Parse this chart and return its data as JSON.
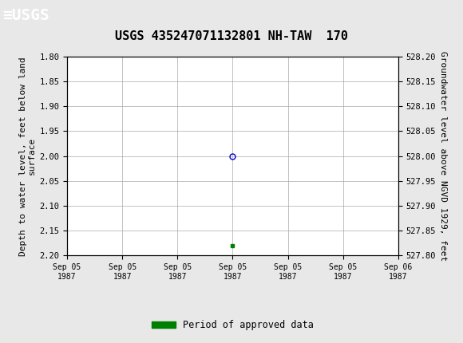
{
  "title": "USGS 435247071132801 NH-TAW  170",
  "title_fontsize": 11,
  "header_color": "#1a6b3c",
  "bg_color": "#e8e8e8",
  "plot_bg_color": "#ffffff",
  "grid_color": "#aaaaaa",
  "xlim_num": [
    0,
    6
  ],
  "x_tick_labels": [
    "Sep 05\n1987",
    "Sep 05\n1987",
    "Sep 05\n1987",
    "Sep 05\n1987",
    "Sep 05\n1987",
    "Sep 05\n1987",
    "Sep 06\n1987"
  ],
  "x_tick_positions": [
    0,
    1,
    2,
    3,
    4,
    5,
    6
  ],
  "ylim": [
    1.8,
    2.2
  ],
  "y_ticks_left": [
    1.8,
    1.85,
    1.9,
    1.95,
    2.0,
    2.05,
    2.1,
    2.15,
    2.2
  ],
  "ylabel_left": "Depth to water level, feet below land\nsurface",
  "ylabel_left_fontsize": 8,
  "ylabel_right": "Groundwater level above NGVD 1929, feet",
  "ylabel_right_fontsize": 8,
  "point_x": 3.0,
  "point_y": 2.0,
  "point_color": "#0000cc",
  "point_marker": "o",
  "point_size": 5,
  "approved_x": 3.0,
  "approved_y": 2.18,
  "approved_color": "#008000",
  "approved_marker": "s",
  "approved_size": 3,
  "legend_label": "Period of approved data",
  "legend_color": "#008000",
  "fig_width": 5.8,
  "fig_height": 4.3,
  "dpi": 100
}
